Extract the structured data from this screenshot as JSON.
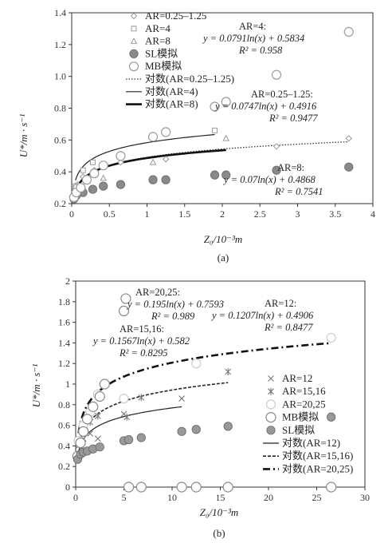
{
  "chart_data": [
    {
      "type": "scatter",
      "panel_label": "(a)",
      "xlabel": "Z₀/10⁻³m",
      "ylabel": "U*/m · s⁻¹",
      "xlim": [
        0,
        4
      ],
      "ylim": [
        0.2,
        1.4
      ],
      "x_ticks": [
        "0",
        "0.5",
        "1",
        "1.5",
        "2",
        "2.5",
        "3",
        "3.5",
        "4"
      ],
      "y_ticks": [
        "0.2",
        "0.4",
        "0.6",
        "0.8",
        "1.0",
        "1.2",
        "1.4"
      ],
      "legend_position": "top-left",
      "series": [
        {
          "name": "AR=0.25–1.25",
          "marker": "diamond",
          "color": "#9a9a9a",
          "x": [
            0.03,
            0.08,
            0.15,
            0.3,
            0.65,
            1.25,
            2.72,
            3.68
          ],
          "y": [
            0.27,
            0.32,
            0.37,
            0.41,
            0.46,
            0.48,
            0.56,
            0.61
          ]
        },
        {
          "name": "AR=4",
          "marker": "square",
          "color": "#9a9a9a",
          "x": [
            0.05,
            0.15,
            0.28,
            1.9
          ],
          "y": [
            0.31,
            0.41,
            0.46,
            0.66
          ]
        },
        {
          "name": "AR=8",
          "marker": "triangle",
          "color": "#9a9a9a",
          "x": [
            0.05,
            0.42,
            1.08,
            2.05
          ],
          "y": [
            0.31,
            0.36,
            0.46,
            0.61
          ]
        },
        {
          "name": "SL模拟",
          "marker": "filled-circle",
          "color": "#8a8a8a",
          "x": [
            0.03,
            0.06,
            0.15,
            0.28,
            0.42,
            0.65,
            1.08,
            1.25,
            1.9,
            2.05,
            2.72,
            3.68
          ],
          "y": [
            0.23,
            0.25,
            0.27,
            0.29,
            0.31,
            0.32,
            0.35,
            0.35,
            0.38,
            0.38,
            0.41,
            0.43
          ]
        },
        {
          "name": "MB模拟",
          "marker": "open-circle",
          "color": "#9a9a9a",
          "x": [
            0.03,
            0.06,
            0.12,
            0.2,
            0.3,
            0.42,
            0.65,
            1.08,
            1.25,
            1.9,
            2.05,
            2.72,
            3.68
          ],
          "y": [
            0.24,
            0.27,
            0.3,
            0.35,
            0.39,
            0.44,
            0.5,
            0.62,
            0.65,
            0.81,
            0.84,
            1.01,
            1.28
          ]
        }
      ],
      "trendlines": [
        {
          "name": "对数(AR=0.25–1.25)",
          "style": "dotted",
          "a": 0.0747,
          "b": 0.4916,
          "x_range": [
            0.03,
            3.68
          ]
        },
        {
          "name": "对数(AR=4)",
          "style": "solid",
          "a": 0.0791,
          "b": 0.5834,
          "x_range": [
            0.05,
            1.9
          ]
        },
        {
          "name": "对数(AR=8)",
          "style": "bold",
          "a": 0.07,
          "b": 0.4868,
          "x_range": [
            0.05,
            2.05
          ]
        }
      ],
      "annotations": [
        {
          "title": "AR=4:",
          "equation": "y = 0.0791ln(x) + 0.5834",
          "r2": "R² = 0.958"
        },
        {
          "title": "AR=0.25–1.25:",
          "equation": "y = 0.0747ln(x) + 0.4916",
          "r2": "R² = 0.9477"
        },
        {
          "title": "AR=8:",
          "equation": "y = 0.07ln(x) + 0.4868",
          "r2": "R² = 0.7541"
        }
      ]
    },
    {
      "type": "scatter",
      "panel_label": "(b)",
      "xlabel": "Z₀/10⁻³m",
      "ylabel": "U*/m · s⁻¹",
      "xlim": [
        0,
        30
      ],
      "ylim": [
        0,
        2
      ],
      "x_ticks": [
        "0",
        "5",
        "10",
        "15",
        "20",
        "25",
        "30"
      ],
      "y_ticks": [
        "0",
        "0.2",
        "0.4",
        "0.6",
        "0.8",
        "1",
        "1.2",
        "1.4",
        "1.6",
        "1.8",
        "2"
      ],
      "legend_position": "right",
      "series": [
        {
          "name": "AR=12",
          "marker": "x",
          "color": "#777777",
          "x": [
            0.3,
            0.8,
            1.5,
            2.3,
            5.0,
            11.0
          ],
          "y": [
            0.4,
            0.47,
            0.52,
            0.47,
            0.71,
            0.86
          ]
        },
        {
          "name": "AR=15,16",
          "marker": "asterisk",
          "color": "#777777",
          "x": [
            0.3,
            0.8,
            1.5,
            2.3,
            5.3,
            6.8,
            15.8
          ],
          "y": [
            0.42,
            0.55,
            0.63,
            0.69,
            0.68,
            0.87,
            1.12
          ]
        },
        {
          "name": "AR=20,25",
          "marker": "open-circle",
          "color": "#cccccc",
          "x": [
            0.3,
            0.8,
            1.5,
            2.3,
            5.0,
            12.5,
            26.5
          ],
          "y": [
            0.45,
            0.6,
            0.73,
            0.9,
            0.86,
            1.2,
            1.45
          ]
        },
        {
          "name": "MB模拟",
          "marker": "open-circle",
          "color": "#888888",
          "x": [
            0.2,
            0.5,
            0.8,
            1.2,
            1.8,
            2.5,
            3.0,
            5.0,
            5.2,
            5.5,
            6.8,
            11.0,
            12.5,
            15.8,
            26.5
          ],
          "y": [
            0.3,
            0.43,
            0.54,
            0.66,
            0.78,
            0.88,
            1.0,
            1.71,
            1.83,
            0.0,
            0.0,
            0.0,
            0.0,
            0.0,
            0.0
          ]
        },
        {
          "name": "SL模拟",
          "marker": "filled-circle",
          "color": "#999999",
          "x": [
            0.2,
            0.5,
            0.8,
            1.2,
            1.8,
            2.5,
            5.0,
            5.5,
            6.8,
            11.0,
            12.5,
            15.8,
            26.5
          ],
          "y": [
            0.27,
            0.32,
            0.34,
            0.35,
            0.37,
            0.39,
            0.45,
            0.46,
            0.48,
            0.54,
            0.56,
            0.59,
            0.68
          ]
        }
      ],
      "trendlines": [
        {
          "name": "对数(AR=12)",
          "style": "solid",
          "a": 0.1207,
          "b": 0.4906,
          "x_range": [
            0.3,
            11.0
          ]
        },
        {
          "name": "对数(AR=15,16)",
          "style": "dashed",
          "a": 0.1567,
          "b": 0.582,
          "x_range": [
            0.3,
            15.8
          ]
        },
        {
          "name": "对数(AR=20,25)",
          "style": "dash-dot-bold",
          "a": 0.195,
          "b": 0.7593,
          "x_range": [
            0.3,
            26.5
          ]
        }
      ],
      "annotations": [
        {
          "title": "AR=20,25:",
          "equation": "y = 0.195ln(x) + 0.7593",
          "r2": "R² = 0.989"
        },
        {
          "title": "AR=12:",
          "equation": "y = 0.1207ln(x) + 0.4906",
          "r2": "R² = 0.8477"
        },
        {
          "title": "AR=15,16:",
          "equation": "y = 0.1567ln(x) + 0.582",
          "r2": "R² = 0.8295"
        }
      ]
    }
  ]
}
